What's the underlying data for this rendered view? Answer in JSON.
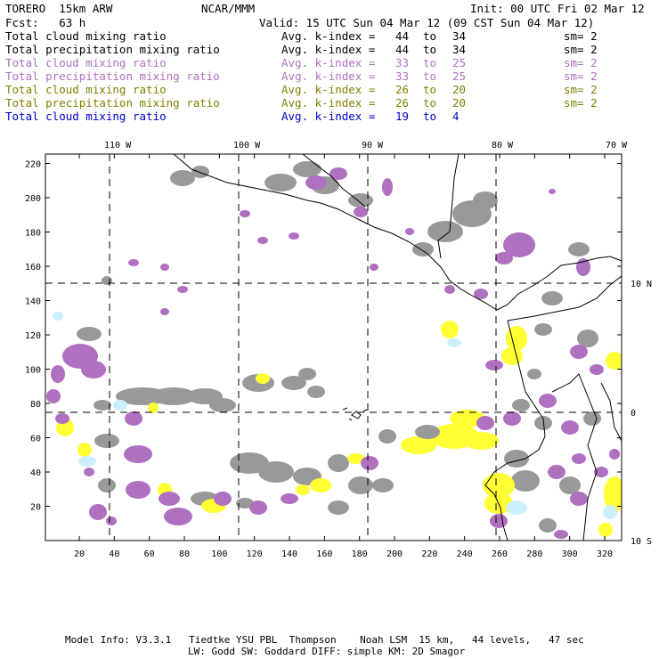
{
  "header": {
    "model": "TORERO  15km ARW",
    "center": "NCAR/MMM",
    "init": "Init: 00 UTC Fri 02 Mar 12",
    "fcst": "Fcst:   63 h",
    "valid": "Valid: 15 UTC Sun 04 Mar 12 (09 CST Sun 04 Mar 12)"
  },
  "legend": [
    {
      "field": "Total cloud mixing ratio",
      "kindex": "Avg. k-index =",
      "from": "44",
      "to_word": "to",
      "to": "34",
      "sm": "sm= 2",
      "color": "#000000"
    },
    {
      "field": "Total precipitation mixing ratio",
      "kindex": "Avg. k-index =",
      "from": "44",
      "to_word": "to",
      "to": "34",
      "sm": "sm= 2",
      "color": "#000000"
    },
    {
      "field": "Total cloud mixing ratio",
      "kindex": "Avg. k-index =",
      "from": "33",
      "to_word": "to",
      "to": "25",
      "sm": "sm= 2",
      "color": "#b070c0"
    },
    {
      "field": "Total precipitation mixing ratio",
      "kindex": "Avg. k-index =",
      "from": "33",
      "to_word": "to",
      "to": "25",
      "sm": "sm= 2",
      "color": "#b070c0"
    },
    {
      "field": "Total cloud mixing ratio",
      "kindex": "Avg. k-index =",
      "from": "26",
      "to_word": "to",
      "to": "20",
      "sm": "sm= 2",
      "color": "#808000"
    },
    {
      "field": "Total precipitation mixing ratio",
      "kindex": "Avg. k-index =",
      "from": "26",
      "to_word": "to",
      "to": "20",
      "sm": "sm= 2",
      "color": "#808000"
    },
    {
      "field": "Total cloud mixing ratio",
      "kindex": "Avg. k-index =",
      "from": "19",
      "to_word": "to",
      "to": "4",
      "sm": "",
      "color": "#0000cc"
    }
  ],
  "map": {
    "lon_labels": [
      "110 W",
      "100 W",
      "90 W",
      "80 W",
      "70 W"
    ],
    "lat_labels": [
      "10 N",
      "0",
      "10 S"
    ],
    "y_ticks": [
      "20",
      "40",
      "60",
      "80",
      "100",
      "120",
      "140",
      "160",
      "180",
      "200",
      "220"
    ],
    "x_ticks": [
      "20",
      "40",
      "60",
      "80",
      "100",
      "120",
      "140",
      "160",
      "180",
      "200",
      "220",
      "240",
      "260",
      "280",
      "300",
      "320"
    ],
    "colors": {
      "gray": "#999999",
      "purple": "#b070c0",
      "yellow": "#ffff33",
      "lightblue": "#cceeff",
      "frame": "#000000"
    }
  },
  "footer": {
    "line1": "Model Info: V3.3.1   Tiedtke YSU PBL  Thompson    Noah LSM  15 km,   44 levels,   47 sec",
    "line2": "LW: Godd SW: Goddard DIFF: simple KM: 2D Smagor"
  }
}
